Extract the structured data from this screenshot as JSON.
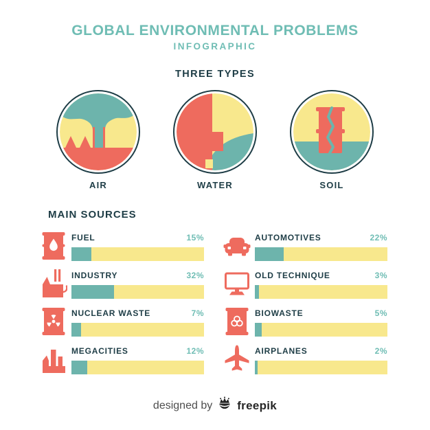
{
  "header": {
    "title": "GLOBAL ENVIRONMENTAL PROBLEMS",
    "subtitle": "INFOGRAPHIC"
  },
  "types": {
    "heading": "THREE TYPES",
    "items": [
      {
        "label": "AIR",
        "illustration": "factory-smoke-illustration"
      },
      {
        "label": "WATER",
        "illustration": "pipe-discharge-illustration"
      },
      {
        "label": "SOIL",
        "illustration": "leaking-barrel-illustration"
      }
    ]
  },
  "sources": {
    "heading": "MAIN SOURCES",
    "rows": [
      {
        "label": "FUEL",
        "value": 15,
        "pct": "15%",
        "icon": "oil-barrel-icon"
      },
      {
        "label": "INDUSTRY",
        "value": 32,
        "pct": "32%",
        "icon": "factory-icon"
      },
      {
        "label": "NUCLEAR WASTE",
        "value": 7,
        "pct": "7%",
        "icon": "radioactive-barrel-icon"
      },
      {
        "label": "MEGACITIES",
        "value": 12,
        "pct": "12%",
        "icon": "city-buildings-icon"
      },
      {
        "label": "AUTOMOTIVES",
        "value": 22,
        "pct": "22%",
        "icon": "car-icon"
      },
      {
        "label": "OLD TECHNIQUE",
        "value": 3,
        "pct": "3%",
        "icon": "monitor-icon"
      },
      {
        "label": "BIOWASTE",
        "value": 5,
        "pct": "5%",
        "icon": "biohazard-barrel-icon"
      },
      {
        "label": "AIRPLANES",
        "value": 2,
        "pct": "2%",
        "icon": "airplane-icon"
      }
    ]
  },
  "footer": {
    "prefix": "designed by",
    "brand": "freepik",
    "logo": "freepik-crown-logo"
  },
  "colors": {
    "teal_text": "#6fbdb4",
    "teal_fill": "#6db4ac",
    "yellow": "#f8e88d",
    "red": "#ee6b5e",
    "dark": "#1e3d46",
    "footer_gray": "#4d4d4d",
    "footer_black": "#262626"
  },
  "chart_data": {
    "type": "bar",
    "orientation": "horizontal",
    "title": "GLOBAL ENVIRONMENTAL PROBLEMS — MAIN SOURCES",
    "categories": [
      "FUEL",
      "INDUSTRY",
      "NUCLEAR WASTE",
      "MEGACITIES",
      "AUTOMOTIVES",
      "OLD TECHNIQUE",
      "BIOWASTE",
      "AIRPLANES"
    ],
    "values": [
      15,
      32,
      7,
      12,
      22,
      3,
      5,
      2
    ],
    "unit": "%",
    "xlim": [
      0,
      100
    ],
    "grid": false,
    "layout": "two-column",
    "bar_color": "#6db4ac",
    "track_color": "#f8e88d"
  }
}
